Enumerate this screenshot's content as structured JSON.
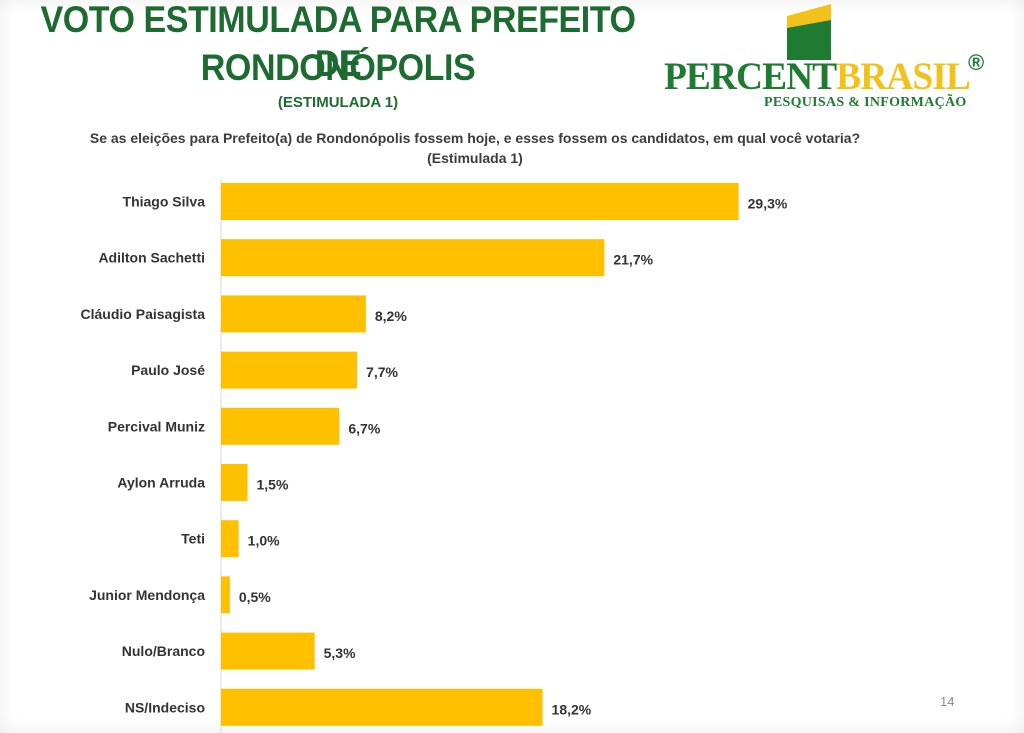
{
  "header": {
    "title_line1": "VOTO ESTIMULADA PARA PREFEITO DE",
    "title_line2": "RONDONÓPOLIS",
    "subtitle": "(ESTIMULADA 1)"
  },
  "logo": {
    "word_part1": "PERCENT",
    "word_part2": "BRASIL",
    "registered": "®",
    "tagline": "PESQUISAS & INFORMAÇÃO",
    "colors": {
      "green": "#1f7a32",
      "yellow": "#f2c21a"
    }
  },
  "page_number": "14",
  "chart_data": {
    "type": "bar",
    "orientation": "horizontal",
    "title": "Se as eleições para Prefeito(a) de Rondonópolis fossem hoje, e esses fossem os candidatos, em qual você votaria?(Estimulada 1)",
    "categories": [
      "Thiago Silva",
      "Adilton Sachetti",
      "Cláudio Paisagista",
      "Paulo José",
      "Percival Muniz",
      "Aylon Arruda",
      "Teti",
      "Junior Mendonça",
      "Nulo/Branco",
      "NS/Indeciso"
    ],
    "values": [
      29.3,
      21.7,
      8.2,
      7.7,
      6.7,
      1.5,
      1.0,
      0.5,
      5.3,
      18.2
    ],
    "value_labels": [
      "29,3%",
      "21,7%",
      "8,2%",
      "7,7%",
      "6,7%",
      "1,5%",
      "1,0%",
      "0,5%",
      "5,3%",
      "18,2%"
    ],
    "bar_color": "#ffc000",
    "xlabel": "",
    "ylabel": "",
    "xlim": [
      0,
      30
    ],
    "grid": false,
    "legend": "none"
  }
}
